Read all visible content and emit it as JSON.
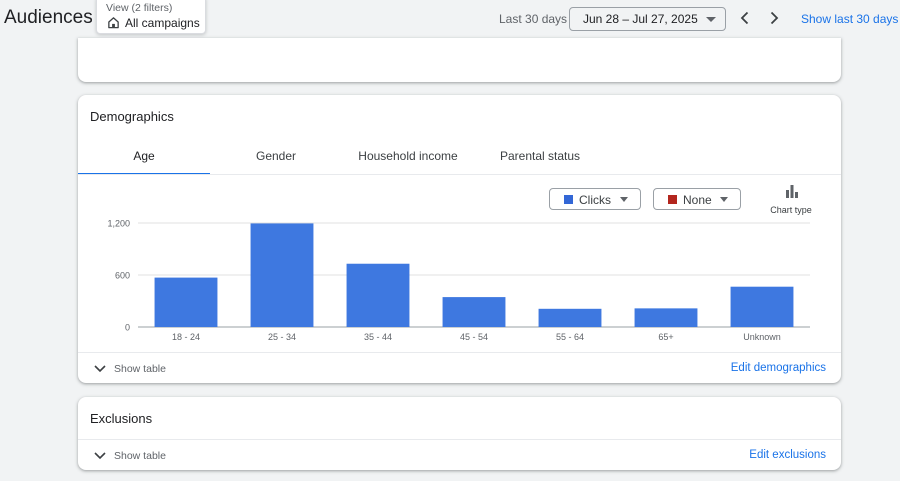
{
  "header": {
    "title": "Audiences",
    "view_filter": {
      "caption": "View (2 filters)",
      "value": "All campaigns",
      "icon": "home-icon"
    },
    "range_label": "Last 30 days",
    "date_range": "Jun 28 – Jul 27, 2025",
    "prev_icon": "chevron-left-icon",
    "next_icon": "chevron-right-icon",
    "show_last_label": "Show last 30 days"
  },
  "demographics": {
    "title": "Demographics",
    "tabs": [
      {
        "label": "Age",
        "active": true
      },
      {
        "label": "Gender",
        "active": false
      },
      {
        "label": "Household income",
        "active": false
      },
      {
        "label": "Parental status",
        "active": false
      }
    ],
    "metric_primary": {
      "label": "Clicks",
      "color": "#3367d6"
    },
    "metric_secondary": {
      "label": "None",
      "color": "#b3261e"
    },
    "chart_type_label": "Chart type",
    "show_table_label": "Show table",
    "edit_label": "Edit demographics"
  },
  "chart_data": {
    "type": "bar",
    "categories": [
      "18 - 24",
      "25 - 34",
      "35 - 44",
      "45 - 54",
      "55 - 64",
      "65+",
      "Unknown"
    ],
    "series": [
      {
        "name": "Clicks",
        "values": [
          570,
          1195,
          730,
          345,
          210,
          215,
          465
        ]
      }
    ],
    "y_ticks": [
      0,
      600,
      1200
    ],
    "y_tick_labels": [
      "0",
      "600",
      "1,200"
    ],
    "ylim": [
      0,
      1200
    ],
    "grid": true,
    "color": "#3e78e0"
  },
  "exclusions": {
    "title": "Exclusions",
    "show_table_label": "Show table",
    "edit_label": "Edit exclusions"
  }
}
